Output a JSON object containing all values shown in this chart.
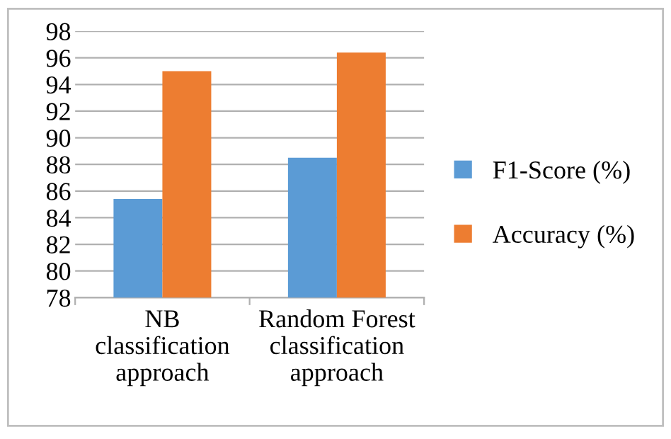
{
  "chart_data": {
    "type": "bar",
    "categories": [
      "NB\nclassification\napproach",
      "Random Forest\nclassification\napproach"
    ],
    "series": [
      {
        "name": "F1-Score (%)",
        "color": "#5b9bd5",
        "values": [
          85.4,
          88.5
        ]
      },
      {
        "name": "Accuracy (%)",
        "color": "#ed7d31",
        "values": [
          95.0,
          96.4
        ]
      }
    ],
    "ylim": [
      78,
      98
    ],
    "yticks": [
      78,
      80,
      82,
      84,
      86,
      88,
      90,
      92,
      94,
      96,
      98
    ],
    "grid": "y",
    "legend": "right"
  }
}
